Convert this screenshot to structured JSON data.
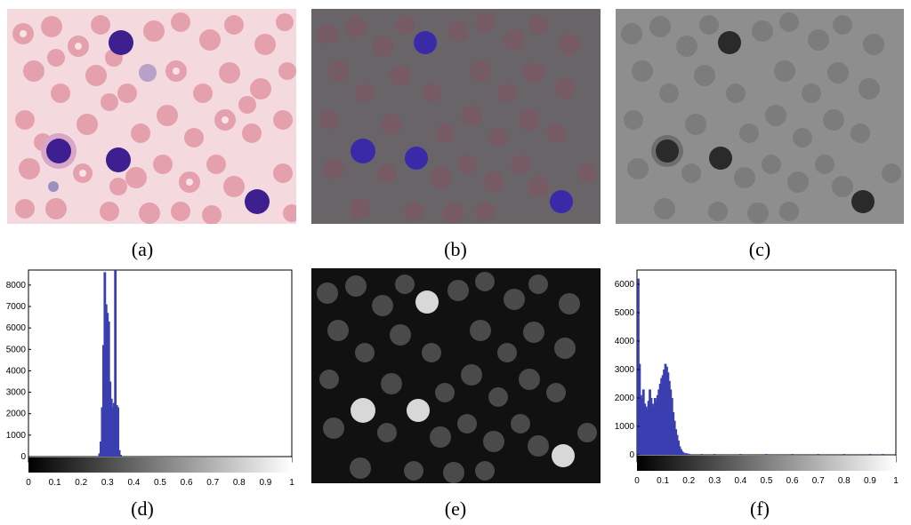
{
  "captions": {
    "a": "(a)",
    "b": "(b)",
    "c": "(c)",
    "d": "(d)",
    "e": "(e)",
    "f": "(f)"
  },
  "colors": {
    "stain_background": "#f3d6dc",
    "rbc_pink": "#e08f9f",
    "wbc_purple": "#3c1f8f",
    "overlay_gray": "#666666",
    "gray_panel": "#8a8a8a",
    "dark_panel": "#101010",
    "histogram_bar": "#3a3fb0"
  },
  "chart_data": [
    {
      "type": "bar",
      "panel": "d",
      "x_ticks": [
        0,
        0.1,
        0.2,
        0.3,
        0.4,
        0.5,
        0.6,
        0.7,
        0.8,
        0.9,
        1
      ],
      "y_ticks": [
        0,
        1000,
        2000,
        3000,
        4000,
        5000,
        6000,
        7000,
        8000
      ],
      "xlim": [
        0,
        1
      ],
      "ylim": [
        -250,
        8700
      ],
      "colorbar": "grayscale black-to-white",
      "x": [
        0.27,
        0.275,
        0.28,
        0.285,
        0.29,
        0.295,
        0.3,
        0.305,
        0.31,
        0.315,
        0.32,
        0.325,
        0.33,
        0.335,
        0.34,
        0.345,
        0.35
      ],
      "values": [
        150,
        700,
        2300,
        5200,
        8600,
        7100,
        6700,
        6300,
        3500,
        2700,
        2300,
        2500,
        8700,
        2400,
        2300,
        300,
        80
      ]
    },
    {
      "type": "bar",
      "panel": "f",
      "x_ticks": [
        0,
        0.1,
        0.2,
        0.3,
        0.4,
        0.5,
        0.6,
        0.7,
        0.8,
        0.9,
        1
      ],
      "y_ticks": [
        0,
        1000,
        2000,
        3000,
        4000,
        5000,
        6000
      ],
      "xlim": [
        0,
        1
      ],
      "ylim": [
        -250,
        6500
      ],
      "colorbar": "grayscale black-to-white",
      "x": [
        0.005,
        0.01,
        0.015,
        0.02,
        0.025,
        0.03,
        0.035,
        0.04,
        0.045,
        0.05,
        0.055,
        0.06,
        0.065,
        0.07,
        0.075,
        0.08,
        0.085,
        0.09,
        0.095,
        0.1,
        0.105,
        0.11,
        0.115,
        0.12,
        0.125,
        0.13,
        0.135,
        0.14,
        0.145,
        0.15,
        0.155,
        0.16,
        0.165,
        0.17,
        0.175,
        0.18,
        0.19,
        0.2,
        0.25,
        0.3,
        0.4,
        0.5,
        0.6,
        0.7,
        0.8,
        0.9,
        0.95
      ],
      "values": [
        6200,
        3200,
        2100,
        2000,
        2300,
        1800,
        1700,
        1600,
        1900,
        2300,
        2000,
        1800,
        1700,
        2000,
        1900,
        2100,
        2300,
        2500,
        2700,
        2800,
        3000,
        3200,
        3100,
        2900,
        2600,
        2300,
        2000,
        1500,
        1200,
        900,
        700,
        500,
        300,
        200,
        120,
        80,
        60,
        40,
        30,
        30,
        30,
        30,
        30,
        30,
        30,
        30,
        30
      ]
    }
  ]
}
